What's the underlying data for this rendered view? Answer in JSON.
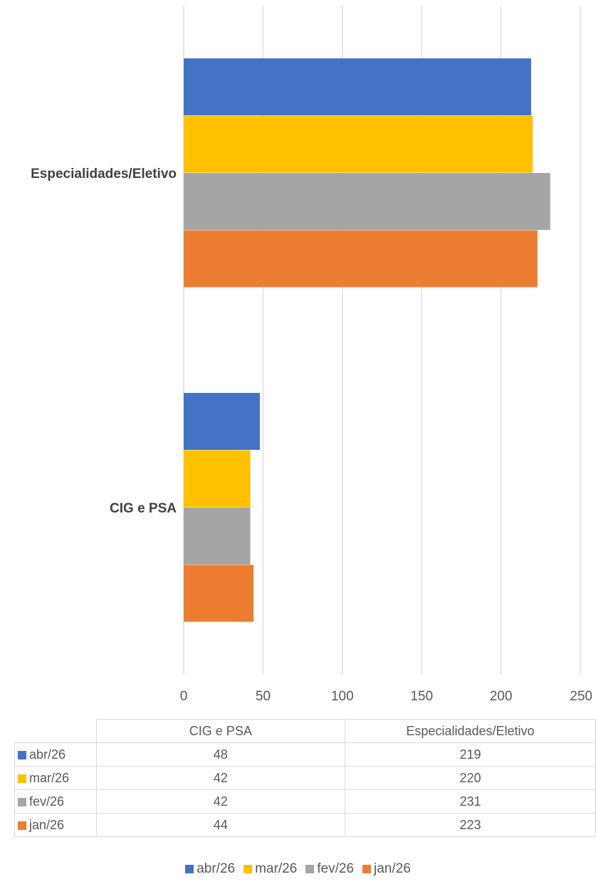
{
  "chart_data": {
    "type": "bar",
    "orientation": "horizontal",
    "categories": [
      "Especialidades/Eletivo",
      "CIG e PSA"
    ],
    "table_columns": [
      "CIG e PSA",
      "Especialidades/Eletivo"
    ],
    "series": [
      {
        "name": "abr/26",
        "color": "#4472c4",
        "values": [
          219,
          48
        ]
      },
      {
        "name": "mar/26",
        "color": "#ffc000",
        "values": [
          220,
          42
        ]
      },
      {
        "name": "fev/26",
        "color": "#a5a5a5",
        "values": [
          231,
          42
        ]
      },
      {
        "name": "jan/26",
        "color": "#ed7d31",
        "values": [
          223,
          44
        ]
      }
    ],
    "xticks": [
      0,
      50,
      100,
      150,
      200,
      250
    ],
    "xlim": [
      0,
      250
    ],
    "grid": true,
    "data_table": true,
    "legend_position": "bottom"
  }
}
